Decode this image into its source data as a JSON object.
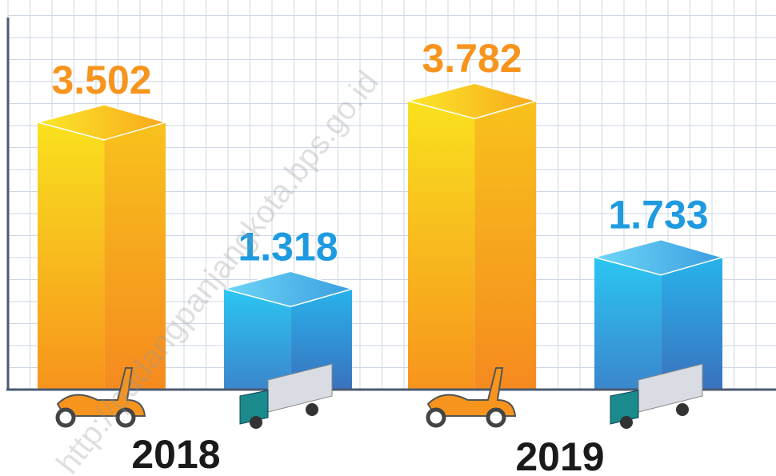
{
  "chart_data": {
    "type": "bar3d",
    "categories": [
      "2018",
      "2019"
    ],
    "series": [
      {
        "color": "#f7941d",
        "values": [
          3502,
          3782
        ],
        "value_labels": [
          "3.502",
          "3.782"
        ]
      },
      {
        "color": "#2a8fd8",
        "values": [
          1318,
          1733
        ],
        "value_labels": [
          "1.318",
          "1.733"
        ]
      }
    ],
    "ylim": [
      0,
      5000
    ],
    "grid": true,
    "watermark": "http://padangpanjangkota.bps.go.id"
  }
}
